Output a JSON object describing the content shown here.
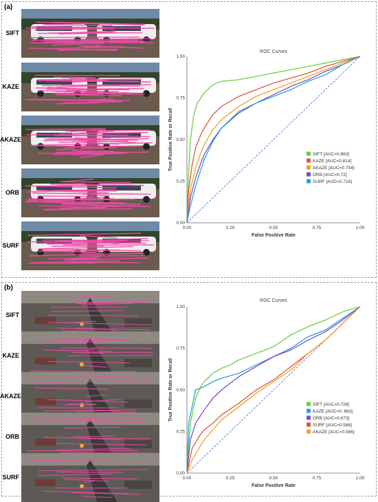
{
  "panel_a": {
    "label": "(a)",
    "rows": [
      "SIFT",
      "KAZE",
      "AKAZE",
      "ORB",
      "SURF"
    ]
  },
  "panel_b": {
    "label": "(b)",
    "rows": [
      "SIFT",
      "KAZE",
      "AKAZE",
      "ORB",
      "SURF"
    ]
  },
  "colors": {
    "match_lines": "#f04aa8",
    "diagonal": "#4a55d8"
  },
  "chart_data": [
    {
      "type": "line",
      "title": "ROC Curves",
      "xlabel": "False Positive Rate",
      "ylabel": "True Positive Rate or Recall",
      "xlim": [
        0,
        1
      ],
      "ylim": [
        0,
        1
      ],
      "xticks": [
        "0.00",
        "0.25",
        "0.50",
        "0.75",
        "1.00"
      ],
      "yticks": [
        "0.00",
        "0.25",
        "0.50",
        "0.75",
        "1.00"
      ],
      "grid": false,
      "legend_position": "bottom-right",
      "series": [
        {
          "name": "SIFT [AUC=0.863]",
          "color": "#6ccf3e",
          "x": [
            0,
            0.01,
            0.02,
            0.04,
            0.06,
            0.08,
            0.1,
            0.15,
            0.2,
            0.3,
            0.4,
            0.5,
            0.6,
            0.7,
            0.8,
            0.9,
            1.0
          ],
          "y": [
            0,
            0.3,
            0.5,
            0.65,
            0.72,
            0.75,
            0.78,
            0.83,
            0.85,
            0.86,
            0.88,
            0.9,
            0.92,
            0.94,
            0.96,
            0.98,
            1.0
          ]
        },
        {
          "name": "KAZE [AUC=0.814]",
          "color": "#e0543f",
          "x": [
            0,
            0.01,
            0.03,
            0.05,
            0.08,
            0.1,
            0.15,
            0.2,
            0.3,
            0.4,
            0.5,
            0.6,
            0.7,
            0.8,
            0.9,
            1.0
          ],
          "y": [
            0,
            0.2,
            0.35,
            0.45,
            0.53,
            0.57,
            0.65,
            0.7,
            0.76,
            0.8,
            0.84,
            0.87,
            0.9,
            0.94,
            0.97,
            1.0
          ]
        },
        {
          "name": "AKAZE [AUC=0.754]",
          "color": "#f2a020",
          "x": [
            0,
            0.02,
            0.05,
            0.08,
            0.1,
            0.15,
            0.2,
            0.3,
            0.4,
            0.5,
            0.6,
            0.7,
            0.8,
            0.9,
            1.0
          ],
          "y": [
            0,
            0.2,
            0.33,
            0.42,
            0.47,
            0.56,
            0.62,
            0.7,
            0.76,
            0.8,
            0.84,
            0.88,
            0.92,
            0.96,
            1.0
          ]
        },
        {
          "name": "ORB [AUC=0.72]",
          "color": "#7b4fc8",
          "x": [
            0,
            0.02,
            0.05,
            0.08,
            0.1,
            0.15,
            0.2,
            0.3,
            0.4,
            0.5,
            0.6,
            0.7,
            0.8,
            0.9,
            1.0
          ],
          "y": [
            0,
            0.15,
            0.27,
            0.36,
            0.41,
            0.5,
            0.57,
            0.66,
            0.72,
            0.77,
            0.82,
            0.86,
            0.91,
            0.95,
            1.0
          ]
        },
        {
          "name": "SURF [AUC=0.716]",
          "color": "#2a9ee0",
          "x": [
            0,
            0.02,
            0.05,
            0.08,
            0.1,
            0.15,
            0.2,
            0.3,
            0.4,
            0.5,
            0.6,
            0.7,
            0.8,
            0.9,
            1.0
          ],
          "y": [
            0,
            0.1,
            0.22,
            0.32,
            0.38,
            0.49,
            0.57,
            0.67,
            0.72,
            0.76,
            0.8,
            0.85,
            0.89,
            0.95,
            1.0
          ]
        }
      ]
    },
    {
      "type": "line",
      "title": "ROC Curves",
      "xlabel": "False Positive Rate",
      "ylabel": "True Positive Rate or Recall",
      "xlim": [
        0,
        1
      ],
      "ylim": [
        0,
        1
      ],
      "xticks": [
        "0.00",
        "0.25",
        "0.50",
        "0.75",
        "1.00"
      ],
      "yticks": [
        "0.00",
        "0.25",
        "0.50",
        "0.75",
        "1.00"
      ],
      "grid": false,
      "legend_position": "bottom-right",
      "series": [
        {
          "name": "SIFT [AUC=0.726]",
          "color": "#6ccf3e",
          "x": [
            0,
            0.02,
            0.05,
            0.08,
            0.1,
            0.15,
            0.2,
            0.25,
            0.3,
            0.4,
            0.5,
            0.6,
            0.7,
            0.8,
            0.9,
            1.0
          ],
          "y": [
            0,
            0.3,
            0.45,
            0.52,
            0.55,
            0.6,
            0.63,
            0.65,
            0.68,
            0.72,
            0.76,
            0.83,
            0.88,
            0.92,
            0.97,
            1.0
          ]
        },
        {
          "name": "KAZE [AUC=0. 683]",
          "color": "#2a9ee0",
          "x": [
            0,
            0.01,
            0.03,
            0.05,
            0.1,
            0.15,
            0.2,
            0.3,
            0.4,
            0.5,
            0.6,
            0.7,
            0.8,
            0.9,
            1.0
          ],
          "y": [
            0,
            0.3,
            0.4,
            0.5,
            0.52,
            0.55,
            0.57,
            0.6,
            0.65,
            0.7,
            0.75,
            0.82,
            0.86,
            0.93,
            1.0
          ]
        },
        {
          "name": "ORB [AUC=0.673]",
          "color": "#7b4fc8",
          "x": [
            0,
            0.02,
            0.05,
            0.1,
            0.15,
            0.2,
            0.3,
            0.4,
            0.5,
            0.6,
            0.7,
            0.8,
            0.9,
            1.0
          ],
          "y": [
            0,
            0.2,
            0.3,
            0.38,
            0.45,
            0.5,
            0.58,
            0.64,
            0.7,
            0.74,
            0.8,
            0.85,
            0.92,
            1.0
          ]
        },
        {
          "name": "SURF [AUC=0.588]",
          "color": "#e0543f",
          "x": [
            0,
            0.03,
            0.07,
            0.1,
            0.15,
            0.2,
            0.3,
            0.4,
            0.5,
            0.6,
            0.7,
            0.8,
            0.9,
            1.0
          ],
          "y": [
            0,
            0.15,
            0.22,
            0.26,
            0.3,
            0.35,
            0.42,
            0.5,
            0.56,
            0.64,
            0.72,
            0.8,
            0.9,
            1.0
          ]
        },
        {
          "name": "AKAZE [AUC=0.586]",
          "color": "#f2a020",
          "x": [
            0,
            0.03,
            0.07,
            0.1,
            0.15,
            0.2,
            0.3,
            0.4,
            0.5,
            0.6,
            0.7,
            0.8,
            0.9,
            1.0
          ],
          "y": [
            0,
            0.08,
            0.15,
            0.2,
            0.26,
            0.32,
            0.4,
            0.48,
            0.55,
            0.62,
            0.72,
            0.8,
            0.9,
            1.0
          ]
        }
      ]
    }
  ]
}
